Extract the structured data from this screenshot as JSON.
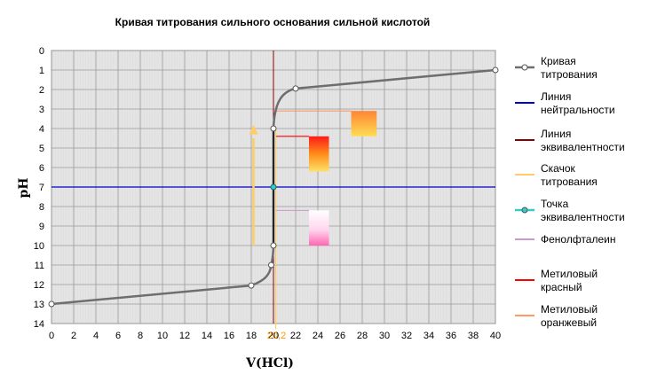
{
  "chart_data": {
    "type": "line",
    "title": "Кривая титрования сильного основания сильной кислотой",
    "xlabel": "V(HCl)",
    "ylabel": "pH",
    "xlim": [
      0,
      40
    ],
    "ylim": [
      0,
      14
    ],
    "y_inverted": true,
    "x_ticks": [
      0,
      2,
      4,
      6,
      8,
      10,
      12,
      14,
      16,
      18,
      20,
      22,
      24,
      26,
      28,
      30,
      32,
      34,
      36,
      38,
      40
    ],
    "y_ticks": [
      0,
      1,
      2,
      3,
      4,
      5,
      6,
      7,
      8,
      9,
      10,
      11,
      12,
      13,
      14
    ],
    "x_special_tick": "20,2",
    "grid": true,
    "legend_position": "right",
    "series": [
      {
        "name": "Кривая титрования",
        "color": "#6e6e6e",
        "points": [
          [
            0,
            13
          ],
          [
            18,
            12.05
          ],
          [
            19.8,
            11
          ],
          [
            20,
            10
          ],
          [
            20,
            7
          ],
          [
            20,
            4
          ],
          [
            22,
            1.95
          ],
          [
            40,
            1
          ]
        ]
      }
    ],
    "neutrality_line": {
      "name": "Линия нейтральности",
      "y": 7,
      "color": "#0000cc"
    },
    "equivalence_line": {
      "name": "Линия эквивалентности",
      "x": 20,
      "color": "#8b0000"
    },
    "jump": {
      "name": "Скачок титрования",
      "x": 20.2,
      "color": "#ffcc66"
    },
    "equivalence_point": {
      "name": "Точка эквивалентности",
      "x": 20,
      "y": 7,
      "color": "#33cccc"
    },
    "indicators": [
      {
        "name": "Фенолфталеин",
        "color": "#cc99cc",
        "ph_from": 8.2,
        "ph_to": 10
      },
      {
        "name": "Метиловый красный",
        "color": "#ff0000",
        "ph_from": 4.4,
        "ph_to": 6.2
      },
      {
        "name": "Метиловый оранжевый",
        "color": "#ff9966",
        "ph_from": 3.1,
        "ph_to": 4.4
      }
    ],
    "legend": [
      {
        "name": "Кривая титрования",
        "color": "#6e6e6e",
        "marker": "circle"
      },
      {
        "name": "Линия нейтральности",
        "color": "#0000cc",
        "marker": "none"
      },
      {
        "name": "Линия эквивалентности",
        "color": "#8b0000",
        "marker": "none"
      },
      {
        "name": "Скачок титрования",
        "color": "#ffcc66",
        "marker": "none"
      },
      {
        "name": "Точка эквивалентности",
        "color": "#33cccc",
        "marker": "circle"
      },
      {
        "name": "Фенолфталеин",
        "color": "#cc99cc",
        "marker": "none"
      },
      {
        "name": "Метиловый красный",
        "color": "#ff0000",
        "marker": "none"
      },
      {
        "name": "Метиловый оранжевый",
        "color": "#ff9966",
        "marker": "none"
      }
    ]
  }
}
